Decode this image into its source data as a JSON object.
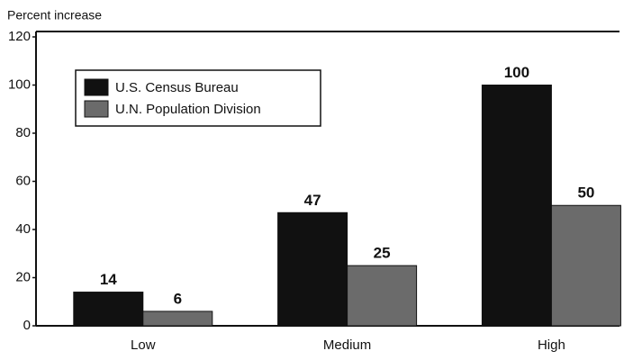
{
  "chart_data": {
    "type": "bar",
    "y_label": "Percent increase",
    "categories": [
      "Low",
      "Medium",
      "High"
    ],
    "series": [
      {
        "name": "U.S. Census Bureau",
        "color": "#111111",
        "values": [
          14,
          47,
          100
        ]
      },
      {
        "name": "U.N. Population Division",
        "color": "#6b6b6b",
        "values": [
          6,
          25,
          50
        ]
      }
    ],
    "ylim": [
      0,
      120
    ],
    "yticks": [
      0,
      20,
      40,
      60,
      80,
      100,
      120
    ],
    "legend": "upper left"
  }
}
